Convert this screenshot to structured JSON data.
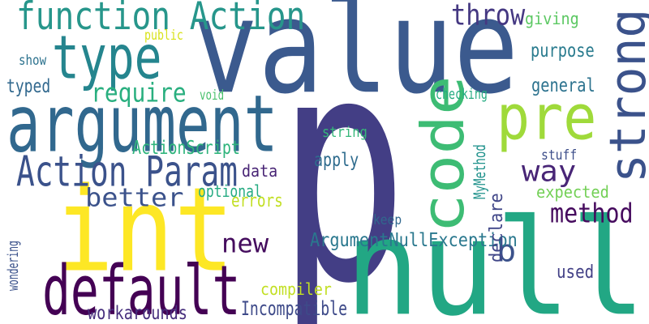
{
  "words": [
    {
      "text": "p",
      "color": "#433e85"
    },
    {
      "text": "value",
      "color": "#3b5a8e"
    },
    {
      "text": "null",
      "color": "#22a784"
    },
    {
      "text": "int",
      "color": "#fde725"
    },
    {
      "text": "argument",
      "color": "#31688e"
    },
    {
      "text": "default",
      "color": "#440154"
    },
    {
      "text": "type",
      "color": "#25858e"
    },
    {
      "text": "function Action",
      "color": "#27968b"
    },
    {
      "text": "code",
      "color": "#3dbc74"
    },
    {
      "text": "pre",
      "color": "#9fda3a"
    },
    {
      "text": "strong",
      "color": "#3b528b"
    },
    {
      "text": "Action Param",
      "color": "#3b528b"
    },
    {
      "text": "throw",
      "color": "#453882"
    },
    {
      "text": "method",
      "color": "#460b5e"
    },
    {
      "text": "better",
      "color": "#3b528b"
    },
    {
      "text": "way",
      "color": "#482576"
    },
    {
      "text": "require",
      "color": "#29af7f"
    },
    {
      "text": "new",
      "color": "#450d5e"
    },
    {
      "text": "b",
      "color": "#3b528b"
    },
    {
      "text": "workarounds",
      "color": "#472f7d"
    },
    {
      "text": "Incompatible",
      "color": "#3e4a89"
    },
    {
      "text": "ArgumentNullException",
      "color": "#2a788e"
    },
    {
      "text": "apply",
      "color": "#2f6c8e"
    },
    {
      "text": "ActionScript",
      "color": "#2fb47c"
    },
    {
      "text": "purpose",
      "color": "#297b8e"
    },
    {
      "text": "general",
      "color": "#2c728e"
    },
    {
      "text": "giving",
      "color": "#5cc863"
    },
    {
      "text": "optional",
      "color": "#25ab82"
    },
    {
      "text": "errors",
      "color": "#c2df23"
    },
    {
      "text": "data",
      "color": "#482475"
    },
    {
      "text": "expected",
      "color": "#73d056"
    },
    {
      "text": "compiler",
      "color": "#c2df23"
    },
    {
      "text": "used",
      "color": "#424086"
    },
    {
      "text": "declare",
      "color": "#404688"
    },
    {
      "text": "typed",
      "color": "#31688e"
    },
    {
      "text": "checking",
      "color": "#25ab82"
    },
    {
      "text": "string",
      "color": "#35b779"
    },
    {
      "text": "MyMethod",
      "color": "#20928c"
    },
    {
      "text": "stuff",
      "color": "#3d4e8a"
    },
    {
      "text": "keep",
      "color": "#31688e"
    },
    {
      "text": "public",
      "color": "#d8e219"
    },
    {
      "text": "void",
      "color": "#4ac16d"
    },
    {
      "text": "show",
      "color": "#2c728e"
    },
    {
      "text": "wondering",
      "color": "#3b528b"
    }
  ]
}
